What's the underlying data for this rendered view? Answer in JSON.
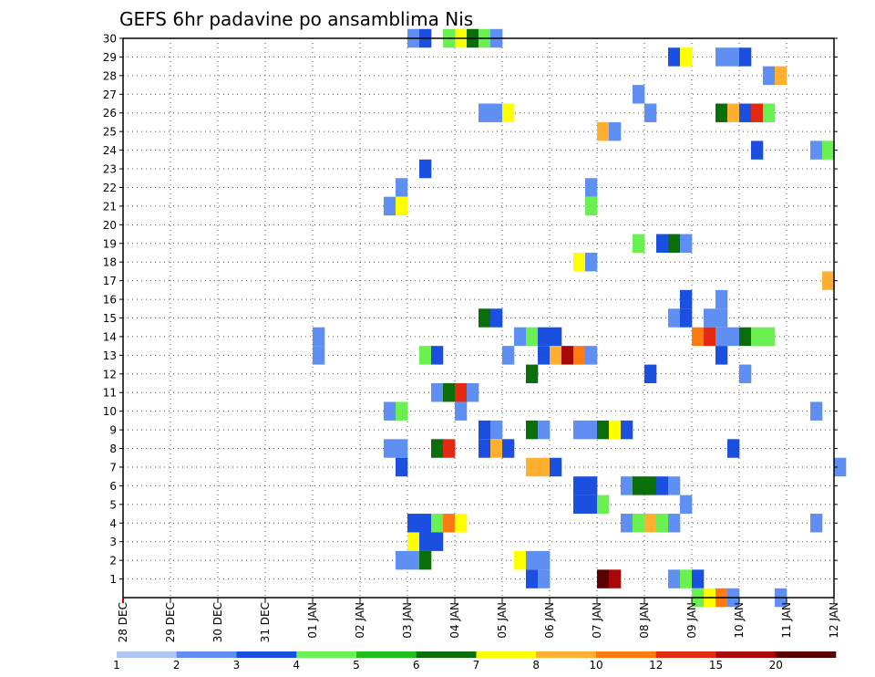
{
  "chart_data": {
    "type": "heatmap",
    "title": "GEFS 6hr padavine po ansamblima Nis",
    "xlabel": "",
    "ylabel": "",
    "x_ticks": [
      "28 DEC",
      "29 DEC",
      "30 DEC",
      "31 DEC",
      "01 JAN",
      "02 JAN",
      "03 JAN",
      "04 JAN",
      "05 JAN",
      "06 JAN",
      "07 JAN",
      "08 JAN",
      "09 JAN",
      "10 JAN",
      "11 JAN",
      "12 JAN"
    ],
    "y_ticks": [
      1,
      2,
      3,
      4,
      5,
      6,
      7,
      8,
      9,
      10,
      11,
      12,
      13,
      14,
      15,
      16,
      17,
      18,
      19,
      20,
      21,
      22,
      23,
      24,
      25,
      26,
      27,
      28,
      29,
      30
    ],
    "x_range_days": [
      0,
      15
    ],
    "y_range": [
      0,
      30
    ],
    "time_step_hours": 6,
    "grid": true,
    "colorbar": {
      "placement": "bottom",
      "tick_labels": [
        "1",
        "2",
        "3",
        "4",
        "5",
        "6",
        "7",
        "8",
        "10",
        "12",
        "15",
        "20"
      ],
      "colors": [
        "#b0c4f6",
        "#5f8ff2",
        "#1a4fe0",
        "#6af050",
        "#1dbf1d",
        "#0a6e0a",
        "#ffff00",
        "#ffb030",
        "#ff7a10",
        "#e32a10",
        "#a80808",
        "#5a0000"
      ]
    },
    "cells": [
      [
        6.0,
        30,
        1
      ],
      [
        6.25,
        30,
        2
      ],
      [
        6.75,
        30,
        3
      ],
      [
        7.0,
        30,
        6
      ],
      [
        7.25,
        30,
        5
      ],
      [
        7.5,
        30,
        3
      ],
      [
        7.75,
        30,
        1
      ],
      [
        11.5,
        29,
        2
      ],
      [
        11.75,
        29,
        6
      ],
      [
        12.5,
        29,
        1
      ],
      [
        12.75,
        29,
        1
      ],
      [
        13.0,
        29,
        2
      ],
      [
        13.5,
        28,
        1
      ],
      [
        13.75,
        28,
        7
      ],
      [
        10.75,
        27,
        1
      ],
      [
        7.5,
        26,
        1
      ],
      [
        7.75,
        26,
        1
      ],
      [
        8.0,
        26,
        6
      ],
      [
        11.0,
        26,
        1
      ],
      [
        12.5,
        26,
        5
      ],
      [
        12.75,
        26,
        7
      ],
      [
        13.0,
        26,
        2
      ],
      [
        13.25,
        26,
        9
      ],
      [
        13.5,
        26,
        3
      ],
      [
        10.0,
        25,
        7
      ],
      [
        10.25,
        25,
        1
      ],
      [
        13.25,
        24,
        2
      ],
      [
        14.5,
        24,
        1
      ],
      [
        14.75,
        24,
        3
      ],
      [
        6.25,
        23,
        2
      ],
      [
        5.75,
        22,
        1
      ],
      [
        9.75,
        22,
        1
      ],
      [
        5.5,
        21,
        1
      ],
      [
        5.75,
        21,
        6
      ],
      [
        9.75,
        21,
        3
      ],
      [
        10.75,
        19,
        3
      ],
      [
        11.25,
        19,
        2
      ],
      [
        11.5,
        19,
        5
      ],
      [
        11.75,
        19,
        1
      ],
      [
        9.5,
        18,
        6
      ],
      [
        9.75,
        18,
        1
      ],
      [
        14.75,
        17,
        7
      ],
      [
        11.75,
        16,
        2
      ],
      [
        12.5,
        16,
        1
      ],
      [
        7.5,
        15,
        5
      ],
      [
        7.75,
        15,
        2
      ],
      [
        11.5,
        15,
        1
      ],
      [
        11.75,
        15,
        2
      ],
      [
        12.25,
        15,
        1
      ],
      [
        12.5,
        15,
        1
      ],
      [
        4.0,
        14,
        1
      ],
      [
        8.25,
        14,
        1
      ],
      [
        8.5,
        14,
        3
      ],
      [
        8.75,
        14,
        2
      ],
      [
        9.0,
        14,
        2
      ],
      [
        12.0,
        14,
        8
      ],
      [
        12.25,
        14,
        9
      ],
      [
        12.5,
        14,
        1
      ],
      [
        12.75,
        14,
        1
      ],
      [
        13.0,
        14,
        5
      ],
      [
        13.25,
        14,
        3
      ],
      [
        13.5,
        14,
        3
      ],
      [
        4.0,
        13,
        1
      ],
      [
        6.25,
        13,
        3
      ],
      [
        6.5,
        13,
        2
      ],
      [
        8.0,
        13,
        1
      ],
      [
        8.75,
        13,
        2
      ],
      [
        9.0,
        13,
        7
      ],
      [
        9.25,
        13,
        10
      ],
      [
        9.5,
        13,
        8
      ],
      [
        9.75,
        13,
        1
      ],
      [
        12.5,
        13,
        2
      ],
      [
        8.5,
        12,
        5
      ],
      [
        11.0,
        12,
        2
      ],
      [
        13.0,
        12,
        1
      ],
      [
        6.5,
        11,
        1
      ],
      [
        6.75,
        11,
        5
      ],
      [
        7.0,
        11,
        9
      ],
      [
        7.25,
        11,
        1
      ],
      [
        5.5,
        10,
        1
      ],
      [
        5.75,
        10,
        3
      ],
      [
        7.0,
        10,
        1
      ],
      [
        14.5,
        10,
        1
      ],
      [
        7.5,
        9,
        2
      ],
      [
        7.75,
        9,
        1
      ],
      [
        8.5,
        9,
        5
      ],
      [
        8.75,
        9,
        1
      ],
      [
        9.5,
        9,
        1
      ],
      [
        9.75,
        9,
        1
      ],
      [
        10.0,
        9,
        5
      ],
      [
        10.25,
        9,
        6
      ],
      [
        10.5,
        9,
        2
      ],
      [
        5.5,
        8,
        1
      ],
      [
        5.75,
        8,
        1
      ],
      [
        6.5,
        8,
        5
      ],
      [
        6.75,
        8,
        9
      ],
      [
        7.5,
        8,
        2
      ],
      [
        7.75,
        8,
        7
      ],
      [
        8.0,
        8,
        2
      ],
      [
        12.75,
        8,
        2
      ],
      [
        5.75,
        7,
        2
      ],
      [
        8.5,
        7,
        7
      ],
      [
        8.75,
        7,
        7
      ],
      [
        9.0,
        7,
        2
      ],
      [
        15.0,
        7,
        1
      ],
      [
        9.5,
        6,
        2
      ],
      [
        9.75,
        6,
        2
      ],
      [
        10.5,
        6,
        1
      ],
      [
        10.75,
        6,
        5
      ],
      [
        11.0,
        6,
        5
      ],
      [
        11.25,
        6,
        2
      ],
      [
        11.5,
        6,
        1
      ],
      [
        9.5,
        5,
        2
      ],
      [
        9.75,
        5,
        2
      ],
      [
        10.0,
        5,
        3
      ],
      [
        11.75,
        5,
        1
      ],
      [
        6.0,
        4,
        2
      ],
      [
        6.25,
        4,
        2
      ],
      [
        6.5,
        4,
        3
      ],
      [
        6.75,
        4,
        8
      ],
      [
        7.0,
        4,
        6
      ],
      [
        10.5,
        4,
        1
      ],
      [
        10.75,
        4,
        3
      ],
      [
        11.0,
        4,
        7
      ],
      [
        11.25,
        4,
        3
      ],
      [
        11.5,
        4,
        1
      ],
      [
        14.5,
        4,
        1
      ],
      [
        6.0,
        3,
        6
      ],
      [
        6.25,
        3,
        2
      ],
      [
        6.5,
        3,
        2
      ],
      [
        5.75,
        2,
        1
      ],
      [
        6.0,
        2,
        1
      ],
      [
        6.25,
        2,
        5
      ],
      [
        8.25,
        2,
        6
      ],
      [
        8.5,
        2,
        1
      ],
      [
        8.75,
        2,
        1
      ],
      [
        8.5,
        1,
        2
      ],
      [
        8.75,
        1,
        1
      ],
      [
        10.0,
        1,
        11
      ],
      [
        10.25,
        1,
        10
      ],
      [
        11.5,
        1,
        1
      ],
      [
        11.75,
        1,
        3
      ],
      [
        12.0,
        1,
        2
      ],
      [
        12.0,
        0,
        3
      ],
      [
        12.25,
        0,
        6
      ],
      [
        12.5,
        0,
        8
      ],
      [
        12.75,
        0,
        1
      ],
      [
        13.75,
        0,
        1
      ]
    ]
  }
}
